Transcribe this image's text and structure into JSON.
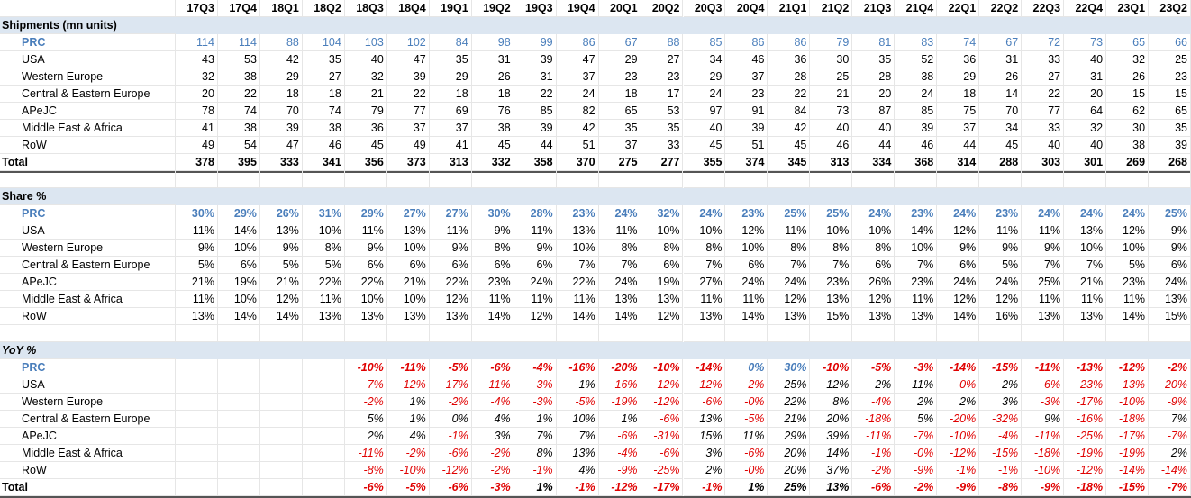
{
  "columns": [
    "17Q3",
    "17Q4",
    "18Q1",
    "18Q2",
    "18Q3",
    "18Q4",
    "19Q1",
    "19Q2",
    "19Q3",
    "19Q4",
    "20Q1",
    "20Q2",
    "20Q3",
    "20Q4",
    "21Q1",
    "21Q2",
    "21Q3",
    "21Q4",
    "22Q1",
    "22Q2",
    "22Q3",
    "22Q4",
    "23Q1",
    "23Q2"
  ],
  "sections": [
    {
      "title": "Shipments (mn units)",
      "italic": false,
      "rows": [
        {
          "label": "PRC",
          "style": "prc",
          "values": [
            "114",
            "114",
            "88",
            "104",
            "103",
            "102",
            "84",
            "98",
            "99",
            "86",
            "67",
            "88",
            "85",
            "86",
            "86",
            "79",
            "81",
            "83",
            "74",
            "67",
            "72",
            "73",
            "65",
            "66"
          ]
        },
        {
          "label": "USA",
          "style": "",
          "values": [
            "43",
            "53",
            "42",
            "35",
            "40",
            "47",
            "35",
            "31",
            "39",
            "47",
            "29",
            "27",
            "34",
            "46",
            "36",
            "30",
            "35",
            "52",
            "36",
            "31",
            "33",
            "40",
            "32",
            "25"
          ]
        },
        {
          "label": "Western Europe",
          "style": "",
          "values": [
            "32",
            "38",
            "29",
            "27",
            "32",
            "39",
            "29",
            "26",
            "31",
            "37",
            "23",
            "23",
            "29",
            "37",
            "28",
            "25",
            "28",
            "38",
            "29",
            "26",
            "27",
            "31",
            "26",
            "23"
          ]
        },
        {
          "label": "Central & Eastern Europe",
          "style": "",
          "values": [
            "20",
            "22",
            "18",
            "18",
            "21",
            "22",
            "18",
            "18",
            "22",
            "24",
            "18",
            "17",
            "24",
            "23",
            "22",
            "21",
            "20",
            "24",
            "18",
            "14",
            "22",
            "20",
            "15",
            "15"
          ]
        },
        {
          "label": "APeJC",
          "style": "",
          "values": [
            "78",
            "74",
            "70",
            "74",
            "79",
            "77",
            "69",
            "76",
            "85",
            "82",
            "65",
            "53",
            "97",
            "91",
            "84",
            "73",
            "87",
            "85",
            "75",
            "70",
            "77",
            "64",
            "62",
            "65"
          ]
        },
        {
          "label": "Middle East & Africa",
          "style": "",
          "values": [
            "41",
            "38",
            "39",
            "38",
            "36",
            "37",
            "37",
            "38",
            "39",
            "42",
            "35",
            "35",
            "40",
            "39",
            "42",
            "40",
            "40",
            "39",
            "37",
            "34",
            "33",
            "32",
            "30",
            "35"
          ]
        },
        {
          "label": "RoW",
          "style": "",
          "values": [
            "49",
            "54",
            "47",
            "46",
            "45",
            "49",
            "41",
            "45",
            "44",
            "51",
            "37",
            "33",
            "45",
            "51",
            "45",
            "46",
            "44",
            "46",
            "44",
            "45",
            "40",
            "40",
            "38",
            "39"
          ]
        },
        {
          "label": "Total",
          "style": "total",
          "values": [
            "378",
            "395",
            "333",
            "341",
            "356",
            "373",
            "313",
            "332",
            "358",
            "370",
            "275",
            "277",
            "355",
            "374",
            "345",
            "313",
            "334",
            "368",
            "314",
            "288",
            "303",
            "301",
            "269",
            "268"
          ]
        }
      ]
    },
    {
      "title": "Share %",
      "italic": false,
      "rows": [
        {
          "label": "PRC",
          "style": "prc bold",
          "values": [
            "30%",
            "29%",
            "26%",
            "31%",
            "29%",
            "27%",
            "27%",
            "30%",
            "28%",
            "23%",
            "24%",
            "32%",
            "24%",
            "23%",
            "25%",
            "25%",
            "24%",
            "23%",
            "24%",
            "23%",
            "24%",
            "24%",
            "24%",
            "25%"
          ]
        },
        {
          "label": "USA",
          "style": "",
          "values": [
            "11%",
            "14%",
            "13%",
            "10%",
            "11%",
            "13%",
            "11%",
            "9%",
            "11%",
            "13%",
            "11%",
            "10%",
            "10%",
            "12%",
            "11%",
            "10%",
            "10%",
            "14%",
            "12%",
            "11%",
            "11%",
            "13%",
            "12%",
            "9%"
          ]
        },
        {
          "label": "Western Europe",
          "style": "",
          "values": [
            "9%",
            "10%",
            "9%",
            "8%",
            "9%",
            "10%",
            "9%",
            "8%",
            "9%",
            "10%",
            "8%",
            "8%",
            "8%",
            "10%",
            "8%",
            "8%",
            "8%",
            "10%",
            "9%",
            "9%",
            "9%",
            "10%",
            "10%",
            "9%"
          ]
        },
        {
          "label": "Central & Eastern Europe",
          "style": "",
          "values": [
            "5%",
            "6%",
            "5%",
            "5%",
            "6%",
            "6%",
            "6%",
            "6%",
            "6%",
            "7%",
            "7%",
            "6%",
            "7%",
            "6%",
            "7%",
            "7%",
            "6%",
            "7%",
            "6%",
            "5%",
            "7%",
            "7%",
            "5%",
            "6%"
          ]
        },
        {
          "label": "APeJC",
          "style": "",
          "values": [
            "21%",
            "19%",
            "21%",
            "22%",
            "22%",
            "21%",
            "22%",
            "23%",
            "24%",
            "22%",
            "24%",
            "19%",
            "27%",
            "24%",
            "24%",
            "23%",
            "26%",
            "23%",
            "24%",
            "24%",
            "25%",
            "21%",
            "23%",
            "24%"
          ]
        },
        {
          "label": "Middle East & Africa",
          "style": "",
          "values": [
            "11%",
            "10%",
            "12%",
            "11%",
            "10%",
            "10%",
            "12%",
            "11%",
            "11%",
            "11%",
            "13%",
            "13%",
            "11%",
            "11%",
            "12%",
            "13%",
            "12%",
            "11%",
            "12%",
            "12%",
            "11%",
            "11%",
            "11%",
            "13%"
          ]
        },
        {
          "label": "RoW",
          "style": "",
          "values": [
            "13%",
            "14%",
            "14%",
            "13%",
            "13%",
            "13%",
            "13%",
            "14%",
            "12%",
            "14%",
            "14%",
            "12%",
            "13%",
            "14%",
            "13%",
            "15%",
            "13%",
            "13%",
            "14%",
            "16%",
            "13%",
            "13%",
            "14%",
            "15%"
          ]
        }
      ]
    },
    {
      "title": "YoY %",
      "italic": true,
      "rows": [
        {
          "label": "PRC",
          "style": "prc yoyrow",
          "values": [
            "",
            "",
            "",
            "",
            "-10%",
            "-11%",
            "-5%",
            "-6%",
            "-4%",
            "-16%",
            "-20%",
            "-10%",
            "-14%",
            "0%",
            "30%",
            "-10%",
            "-5%",
            "-3%",
            "-14%",
            "-15%",
            "-11%",
            "-13%",
            "-12%",
            "-2%"
          ]
        },
        {
          "label": "USA",
          "style": "yoyrow",
          "values": [
            "",
            "",
            "",
            "",
            "-7%",
            "-12%",
            "-17%",
            "-11%",
            "-3%",
            "1%",
            "-16%",
            "-12%",
            "-12%",
            "-2%",
            "25%",
            "12%",
            "2%",
            "11%",
            "-0%",
            "2%",
            "-6%",
            "-23%",
            "-13%",
            "-20%"
          ]
        },
        {
          "label": "Western Europe",
          "style": "yoyrow",
          "values": [
            "",
            "",
            "",
            "",
            "-2%",
            "1%",
            "-2%",
            "-4%",
            "-3%",
            "-5%",
            "-19%",
            "-12%",
            "-6%",
            "-0%",
            "22%",
            "8%",
            "-4%",
            "2%",
            "2%",
            "3%",
            "-3%",
            "-17%",
            "-10%",
            "-9%"
          ]
        },
        {
          "label": "Central & Eastern Europe",
          "style": "yoyrow",
          "values": [
            "",
            "",
            "",
            "",
            "5%",
            "1%",
            "0%",
            "4%",
            "1%",
            "10%",
            "1%",
            "-6%",
            "13%",
            "-5%",
            "21%",
            "20%",
            "-18%",
            "5%",
            "-20%",
            "-32%",
            "9%",
            "-16%",
            "-18%",
            "7%"
          ]
        },
        {
          "label": "APeJC",
          "style": "yoyrow",
          "values": [
            "",
            "",
            "",
            "",
            "2%",
            "4%",
            "-1%",
            "3%",
            "7%",
            "7%",
            "-6%",
            "-31%",
            "15%",
            "11%",
            "29%",
            "39%",
            "-11%",
            "-7%",
            "-10%",
            "-4%",
            "-11%",
            "-25%",
            "-17%",
            "-7%"
          ]
        },
        {
          "label": "Middle East & Africa",
          "style": "yoyrow",
          "values": [
            "",
            "",
            "",
            "",
            "-11%",
            "-2%",
            "-6%",
            "-2%",
            "8%",
            "13%",
            "-4%",
            "-6%",
            "3%",
            "-6%",
            "20%",
            "14%",
            "-1%",
            "-0%",
            "-12%",
            "-15%",
            "-18%",
            "-19%",
            "-19%",
            "2%"
          ]
        },
        {
          "label": "RoW",
          "style": "yoyrow",
          "values": [
            "",
            "",
            "",
            "",
            "-8%",
            "-10%",
            "-12%",
            "-2%",
            "-1%",
            "4%",
            "-9%",
            "-25%",
            "2%",
            "-0%",
            "20%",
            "37%",
            "-2%",
            "-9%",
            "-1%",
            "-1%",
            "-10%",
            "-12%",
            "-14%",
            "-14%"
          ]
        },
        {
          "label": "Total",
          "style": "total yoyrow",
          "values": [
            "",
            "",
            "",
            "",
            "-6%",
            "-5%",
            "-6%",
            "-3%",
            "1%",
            "-1%",
            "-12%",
            "-17%",
            "-1%",
            "1%",
            "25%",
            "13%",
            "-6%",
            "-2%",
            "-9%",
            "-8%",
            "-9%",
            "-18%",
            "-15%",
            "-7%"
          ]
        }
      ]
    }
  ]
}
